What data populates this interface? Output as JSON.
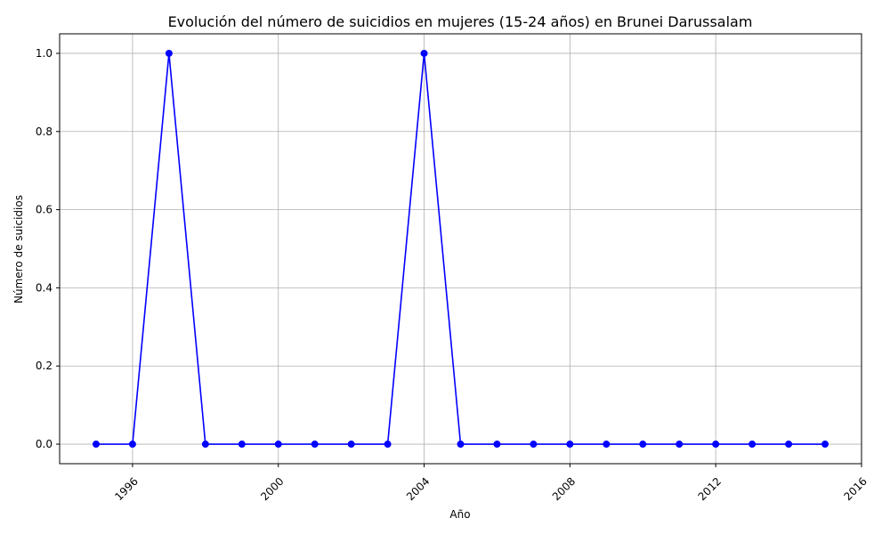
{
  "chart_data": {
    "type": "line",
    "title": "Evolución del número de suicidios en mujeres (15-24 años) en Brunei Darussalam",
    "xlabel": "Año",
    "ylabel": "Número de suicidios",
    "xlim": [
      1994,
      2016
    ],
    "ylim": [
      -0.05,
      1.05
    ],
    "xticks": [
      1996,
      2000,
      2004,
      2008,
      2012,
      2016
    ],
    "yticks": [
      0.0,
      0.2,
      0.4,
      0.6,
      0.8,
      1.0
    ],
    "grid": true,
    "legend": "none",
    "colors": {
      "line": "#0000ff",
      "marker": "#0000ff",
      "grid": "#b0b0b0"
    },
    "series": [
      {
        "x": [
          1995,
          1996,
          1997,
          1998,
          1999,
          2000,
          2001,
          2002,
          2003,
          2004,
          2005,
          2006,
          2007,
          2008,
          2009,
          2010,
          2011,
          2012,
          2013,
          2014,
          2015
        ],
        "y": [
          0,
          0,
          1,
          0,
          0,
          0,
          0,
          0,
          0,
          1,
          0,
          0,
          0,
          0,
          0,
          0,
          0,
          0,
          0,
          0,
          0
        ]
      }
    ]
  }
}
